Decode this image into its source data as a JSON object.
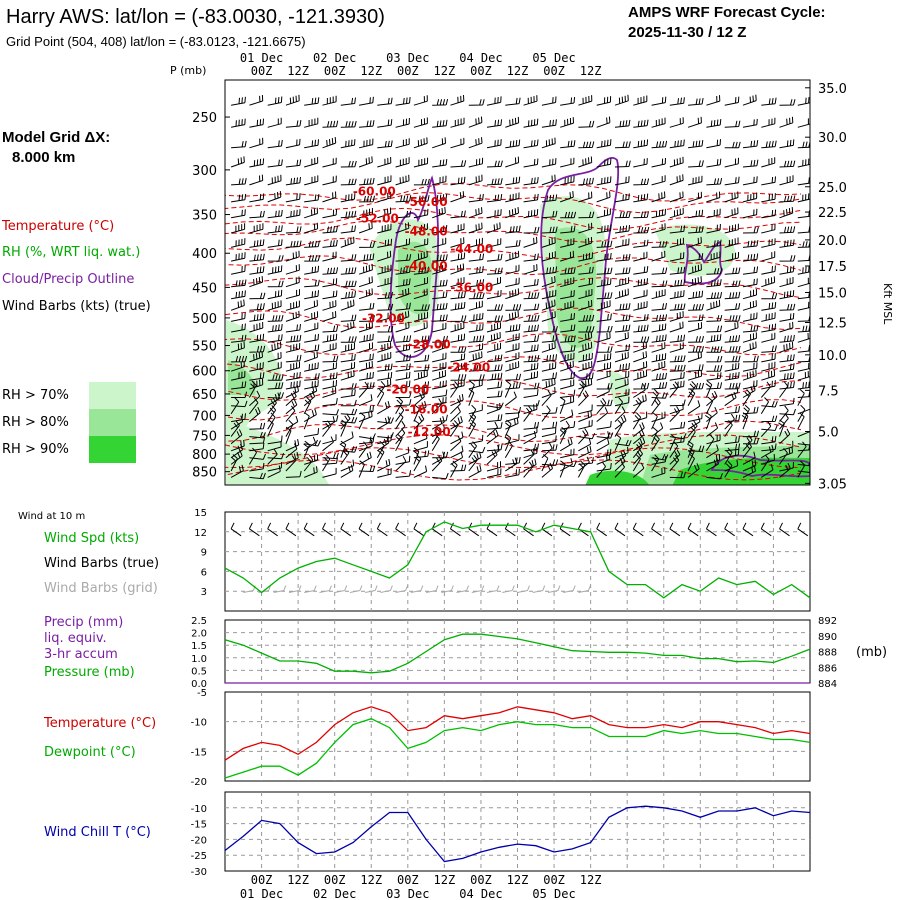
{
  "header": {
    "title": "Harry AWS:  lat/lon = (-83.0030, -121.3930)",
    "gridpoint": "Grid Point (504, 408) lat/lon = (-83.0123, -121.6675)",
    "cycle_line1": "AMPS WRF Forecast Cycle:",
    "cycle_line2": "2025-11-30 / 12  Z"
  },
  "time_axis": {
    "ticks": [
      "00Z",
      "12Z",
      "00Z",
      "12Z",
      "00Z",
      "12Z",
      "00Z",
      "12Z",
      "00Z",
      "12Z"
    ],
    "days": [
      "01 Dec",
      "02 Dec",
      "03 Dec",
      "04 Dec",
      "05 Dec"
    ]
  },
  "legend": {
    "model_grid_label": "Model Grid ΔX:",
    "model_grid_value": "8.000 km",
    "temperature": "Temperature (°C)",
    "rh": "RH (%, WRT liq. wat.)",
    "cloud": "Cloud/Precip Outline",
    "wind_barbs": "Wind Barbs (kts) (true)",
    "rh_boxes": [
      {
        "label": "RH > 70%",
        "color": "#ccf5cc"
      },
      {
        "label": "RH > 80%",
        "color": "#99e699"
      },
      {
        "label": "RH > 90%",
        "color": "#33d433"
      }
    ],
    "pressure_axis_label": "P (mb)",
    "height_axis_label": "Kft MSL"
  },
  "colors": {
    "temperature": "#e00000",
    "rh_fill": "#33d433",
    "cloud": "#7a1fa2",
    "wind_speed": "#00b000",
    "grid_barb": "#aaaaaa",
    "precip": "#7a1fa2",
    "pressure": "#00b000",
    "dewpoint": "#00c000",
    "wind_chill": "#0000aa"
  },
  "panel_labels": {
    "wind10": "Wind at 10 m",
    "wind_spd": "Wind Spd (kts)",
    "wind_barbs_true": "Wind Barbs (true)",
    "wind_barbs_grid": "Wind Barbs (grid)",
    "precip1": "Precip (mm)",
    "precip2": "liq. equiv.",
    "precip3": "3-hr accum",
    "pressure": "Pressure (mb)",
    "temperature": "Temperature (°C)",
    "dewpoint": "Dewpoint (°C)",
    "wind_chill": "Wind Chill T (°C)",
    "mb_unit": "(mb)"
  },
  "chart_data": [
    {
      "type": "heatmap",
      "panel": "vertical cross-section",
      "x": [
        "00Z 01 Dec",
        "12Z",
        "00Z 02 Dec",
        "12Z",
        "00Z 03 Dec",
        "12Z",
        "00Z 04 Dec",
        "12Z",
        "00Z 05 Dec",
        "12Z"
      ],
      "y_pressure_ticks": [
        "250",
        "300",
        "350",
        "400",
        "450",
        "500",
        "550",
        "600",
        "650",
        "700",
        "750",
        "800",
        "850"
      ],
      "y_height_ticks": [
        "35.0",
        "30.0",
        "25.0",
        "22.5",
        "20.0",
        "17.5",
        "15.0",
        "12.5",
        "10.0",
        "7.5",
        "5.0",
        "3.05"
      ],
      "temperature_contours": [
        {
          "label": "-60.00",
          "hour": 49,
          "p": 323
        },
        {
          "label": "-56.00",
          "hour": 66,
          "p": 335
        },
        {
          "label": "-52.00",
          "hour": 50,
          "p": 355
        },
        {
          "label": "-48.00",
          "hour": 66,
          "p": 371
        },
        {
          "label": "-44.00",
          "hour": 81,
          "p": 394
        },
        {
          "label": "-40.00",
          "hour": 66,
          "p": 418
        },
        {
          "label": "-36.00",
          "hour": 81,
          "p": 450
        },
        {
          "label": "-32.00",
          "hour": 52,
          "p": 501
        },
        {
          "label": "-28.00",
          "hour": 67,
          "p": 548
        },
        {
          "label": "-24.00",
          "hour": 80,
          "p": 593
        },
        {
          "label": "-20.00",
          "hour": 60,
          "p": 640
        },
        {
          "label": "-16.00",
          "hour": 66,
          "p": 686
        },
        {
          "label": "-12.00",
          "hour": 67,
          "p": 741
        }
      ]
    },
    {
      "type": "line",
      "panel": "wind at 10 m",
      "hours": [
        0,
        6,
        12,
        18,
        24,
        30,
        36,
        42,
        48,
        54,
        60,
        66,
        72,
        78,
        84,
        90,
        96,
        102,
        108,
        114,
        120,
        126,
        132,
        138,
        144,
        150,
        156,
        162,
        168,
        174,
        180,
        186,
        192
      ],
      "series": [
        {
          "name": "Wind Spd (kts)",
          "values": [
            6.5,
            5.0,
            2.8,
            5.0,
            6.5,
            7.5,
            8.0,
            7.0,
            6.0,
            5.0,
            7.0,
            12.0,
            13.5,
            12.5,
            13.0,
            13.0,
            13.0,
            12.0,
            13.0,
            12.5,
            12.0,
            6.0,
            4.0,
            4.0,
            2.0,
            4.0,
            3.0,
            5.0,
            4.0,
            4.5,
            2.5,
            4.0,
            2.0
          ]
        }
      ],
      "ylim": [
        0,
        15
      ],
      "yticks": [
        "15",
        "12",
        "9",
        "6",
        "3"
      ]
    },
    {
      "type": "line",
      "panel": "precip / pressure",
      "hours": [
        0,
        6,
        12,
        18,
        24,
        30,
        36,
        42,
        48,
        54,
        60,
        66,
        72,
        78,
        84,
        90,
        96,
        102,
        108,
        114,
        120,
        126,
        132,
        138,
        144,
        150,
        156,
        162,
        168,
        174,
        180,
        186,
        192
      ],
      "series": [
        {
          "name": "Pressure (mb)",
          "values": [
            889.5,
            888.8,
            887.8,
            886.8,
            886.8,
            886.5,
            885.5,
            885.5,
            885.3,
            885.5,
            886.5,
            888.0,
            889.5,
            890.2,
            890.2,
            889.9,
            889.6,
            889.1,
            888.6,
            888.1,
            888.0,
            887.9,
            887.9,
            887.8,
            887.5,
            887.5,
            887.1,
            887.1,
            886.7,
            886.8,
            886.6,
            887.4,
            888.3
          ]
        },
        {
          "name": "Precip (mm)",
          "values": [
            0,
            0,
            0,
            0,
            0,
            0,
            0,
            0,
            0,
            0,
            0,
            0,
            0,
            0,
            0,
            0,
            0,
            0,
            0,
            0,
            0,
            0,
            0,
            0,
            0,
            0,
            0,
            0,
            0,
            0,
            0,
            0,
            0
          ]
        }
      ],
      "precip_yticks": [
        "2.5",
        "2.0",
        "1.5",
        "1.0",
        "0.5",
        "0.0"
      ],
      "pressure_yticks": [
        "892",
        "890",
        "888",
        "886",
        "884"
      ],
      "ylim_precip": [
        0,
        2.5
      ],
      "ylim_pressure": [
        884,
        892
      ]
    },
    {
      "type": "line",
      "panel": "temperature / dewpoint",
      "hours": [
        0,
        6,
        12,
        18,
        24,
        30,
        36,
        42,
        48,
        54,
        60,
        66,
        72,
        78,
        84,
        90,
        96,
        102,
        108,
        114,
        120,
        126,
        132,
        138,
        144,
        150,
        156,
        162,
        168,
        174,
        180,
        186,
        192
      ],
      "series": [
        {
          "name": "Temperature (°C)",
          "values": [
            -16.5,
            -14.5,
            -13.5,
            -14.0,
            -15.5,
            -13.5,
            -10.5,
            -8.5,
            -7.5,
            -8.5,
            -11.5,
            -11.0,
            -9.0,
            -9.5,
            -9.0,
            -8.5,
            -7.5,
            -8.0,
            -8.5,
            -9.5,
            -9.0,
            -10.5,
            -11.0,
            -11.0,
            -10.5,
            -11.0,
            -10.0,
            -10.0,
            -10.5,
            -11.0,
            -12.0,
            -11.5,
            -12.0
          ]
        },
        {
          "name": "Dewpoint (°C)",
          "values": [
            -19.5,
            -18.5,
            -17.5,
            -17.5,
            -19.0,
            -17.0,
            -13.5,
            -10.5,
            -9.5,
            -11.0,
            -14.5,
            -13.5,
            -11.5,
            -11.0,
            -11.5,
            -10.5,
            -10.0,
            -10.5,
            -10.5,
            -11.0,
            -11.0,
            -12.5,
            -12.5,
            -12.5,
            -11.5,
            -12.0,
            -11.5,
            -12.0,
            -12.0,
            -12.5,
            -13.0,
            -13.0,
            -13.5
          ]
        }
      ],
      "ylim": [
        -20,
        -5
      ],
      "yticks": [
        "-5",
        "-10",
        "-15",
        "-20"
      ]
    },
    {
      "type": "line",
      "panel": "wind chill",
      "hours": [
        0,
        6,
        12,
        18,
        24,
        30,
        36,
        42,
        48,
        54,
        60,
        66,
        72,
        78,
        84,
        90,
        96,
        102,
        108,
        114,
        120,
        126,
        132,
        138,
        144,
        150,
        156,
        162,
        168,
        174,
        180,
        186,
        192
      ],
      "series": [
        {
          "name": "Wind Chill T (°C)",
          "values": [
            -23.5,
            -19.0,
            -14.0,
            -15.0,
            -21.0,
            -24.5,
            -24.0,
            -21.0,
            -16.0,
            -11.5,
            -11.5,
            -20.0,
            -27.0,
            -26.0,
            -24.0,
            -22.5,
            -21.5,
            -22.0,
            -24.0,
            -23.0,
            -21.0,
            -13.0,
            -10.0,
            -9.5,
            -10.0,
            -11.0,
            -13.0,
            -11.0,
            -11.0,
            -10.0,
            -12.5,
            -11.0,
            -11.5
          ]
        }
      ],
      "ylim": [
        -30,
        -5
      ],
      "yticks": [
        "-10",
        "-15",
        "-20",
        "-25",
        "-30"
      ]
    }
  ]
}
